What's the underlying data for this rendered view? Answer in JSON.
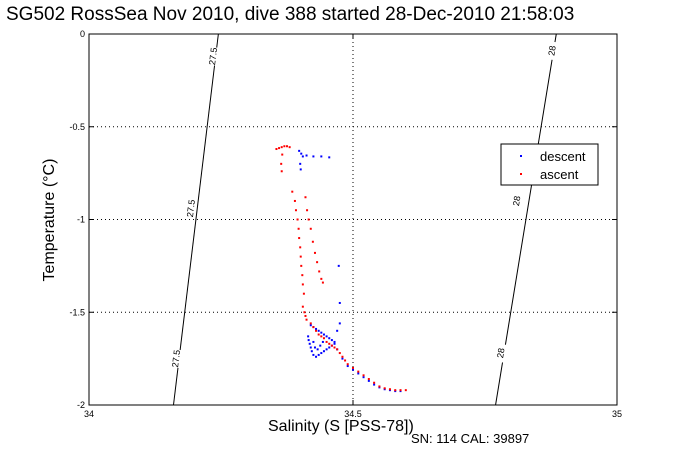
{
  "chart_data": {
    "type": "scatter",
    "title": "SG502 RossSea Nov 2010, dive 388 started 28-Dec-2010 21:58:03",
    "xlabel": "Salinity (S [PSS-78])",
    "ylabel": "Temperature (°C)",
    "xlim": [
      34,
      35
    ],
    "ylim": [
      -2,
      0
    ],
    "xticks": [
      "34",
      "34.5",
      "35"
    ],
    "yticks": [
      "-2",
      "-1.5",
      "-1",
      "-0.5",
      "0"
    ],
    "grid": true,
    "legend_position": "right",
    "footer": "SN: 114  CAL: 39897",
    "contours": [
      {
        "label": "27.5",
        "points": [
          [
            34.16,
            -2.0
          ],
          [
            34.245,
            0.0
          ]
        ],
        "label_positions": [
          [
            34.235,
            -0.12
          ],
          [
            34.193,
            -0.94
          ],
          [
            34.165,
            -1.75
          ]
        ]
      },
      {
        "label": "28",
        "points": [
          [
            34.77,
            -2.0
          ],
          [
            34.885,
            0.0
          ]
        ],
        "label_positions": [
          [
            34.877,
            -0.09
          ],
          [
            34.81,
            -0.9
          ],
          [
            34.78,
            -1.72
          ]
        ]
      }
    ],
    "series": [
      {
        "name": "descent",
        "color": "#0000ff",
        "points": [
          [
            34.398,
            -0.63
          ],
          [
            34.402,
            -0.645
          ],
          [
            34.405,
            -0.66
          ],
          [
            34.412,
            -0.655
          ],
          [
            34.425,
            -0.66
          ],
          [
            34.44,
            -0.66
          ],
          [
            34.455,
            -0.665
          ],
          [
            34.4,
            -0.7
          ],
          [
            34.401,
            -0.73
          ],
          [
            34.473,
            -1.25
          ],
          [
            34.475,
            -1.45
          ],
          [
            34.42,
            -1.57
          ],
          [
            34.425,
            -1.58
          ],
          [
            34.43,
            -1.59
          ],
          [
            34.435,
            -1.6
          ],
          [
            34.44,
            -1.61
          ],
          [
            34.445,
            -1.62
          ],
          [
            34.45,
            -1.63
          ],
          [
            34.455,
            -1.64
          ],
          [
            34.46,
            -1.65
          ],
          [
            34.465,
            -1.66
          ],
          [
            34.47,
            -1.6
          ],
          [
            34.475,
            -1.56
          ],
          [
            34.415,
            -1.63
          ],
          [
            34.416,
            -1.65
          ],
          [
            34.418,
            -1.67
          ],
          [
            34.42,
            -1.69
          ],
          [
            34.422,
            -1.71
          ],
          [
            34.425,
            -1.73
          ],
          [
            34.43,
            -1.74
          ],
          [
            34.435,
            -1.73
          ],
          [
            34.44,
            -1.72
          ],
          [
            34.445,
            -1.71
          ],
          [
            34.45,
            -1.7
          ],
          [
            34.455,
            -1.69
          ],
          [
            34.46,
            -1.68
          ],
          [
            34.465,
            -1.67
          ],
          [
            34.425,
            -1.66
          ],
          [
            34.428,
            -1.69
          ],
          [
            34.433,
            -1.7
          ],
          [
            34.438,
            -1.68
          ],
          [
            34.443,
            -1.66
          ],
          [
            34.47,
            -1.7
          ],
          [
            34.48,
            -1.75
          ],
          [
            34.49,
            -1.79
          ],
          [
            34.5,
            -1.81
          ],
          [
            34.51,
            -1.83
          ],
          [
            34.52,
            -1.85
          ],
          [
            34.53,
            -1.87
          ],
          [
            34.54,
            -1.89
          ],
          [
            34.55,
            -1.905
          ],
          [
            34.56,
            -1.915
          ],
          [
            34.57,
            -1.92
          ],
          [
            34.58,
            -1.925
          ],
          [
            34.59,
            -1.925
          ]
        ]
      },
      {
        "name": "ascent",
        "color": "#ff0000",
        "points": [
          [
            34.355,
            -0.62
          ],
          [
            34.36,
            -0.615
          ],
          [
            34.365,
            -0.61
          ],
          [
            34.37,
            -0.605
          ],
          [
            34.375,
            -0.605
          ],
          [
            34.38,
            -0.61
          ],
          [
            34.366,
            -0.65
          ],
          [
            34.364,
            -0.7
          ],
          [
            34.365,
            -0.74
          ],
          [
            34.385,
            -0.85
          ],
          [
            34.39,
            -0.9
          ],
          [
            34.392,
            -0.95
          ],
          [
            34.395,
            -1.0
          ],
          [
            34.397,
            -1.05
          ],
          [
            34.398,
            -1.1
          ],
          [
            34.4,
            -1.15
          ],
          [
            34.401,
            -1.2
          ],
          [
            34.402,
            -1.25
          ],
          [
            34.404,
            -1.3
          ],
          [
            34.405,
            -1.35
          ],
          [
            34.407,
            -1.4
          ],
          [
            34.41,
            -0.88
          ],
          [
            34.413,
            -0.95
          ],
          [
            34.416,
            -1.0
          ],
          [
            34.42,
            -1.05
          ],
          [
            34.424,
            -1.12
          ],
          [
            34.428,
            -1.18
          ],
          [
            34.432,
            -1.23
          ],
          [
            34.436,
            -1.28
          ],
          [
            34.44,
            -1.32
          ],
          [
            34.443,
            -1.34
          ],
          [
            34.405,
            -1.47
          ],
          [
            34.408,
            -1.5
          ],
          [
            34.41,
            -1.52
          ],
          [
            34.412,
            -1.54
          ],
          [
            34.42,
            -1.56
          ],
          [
            34.425,
            -1.58
          ],
          [
            34.43,
            -1.6
          ],
          [
            34.435,
            -1.62
          ],
          [
            34.44,
            -1.63
          ],
          [
            34.445,
            -1.64
          ],
          [
            34.45,
            -1.66
          ],
          [
            34.455,
            -1.67
          ],
          [
            34.46,
            -1.68
          ],
          [
            34.465,
            -1.69
          ],
          [
            34.47,
            -1.7
          ],
          [
            34.475,
            -1.72
          ],
          [
            34.48,
            -1.74
          ],
          [
            34.485,
            -1.76
          ],
          [
            34.49,
            -1.78
          ],
          [
            34.5,
            -1.8
          ],
          [
            34.51,
            -1.82
          ],
          [
            34.52,
            -1.84
          ],
          [
            34.53,
            -1.86
          ],
          [
            34.54,
            -1.88
          ],
          [
            34.55,
            -1.9
          ],
          [
            34.56,
            -1.91
          ],
          [
            34.57,
            -1.915
          ],
          [
            34.58,
            -1.92
          ],
          [
            34.59,
            -1.92
          ],
          [
            34.6,
            -1.92
          ]
        ]
      }
    ]
  }
}
